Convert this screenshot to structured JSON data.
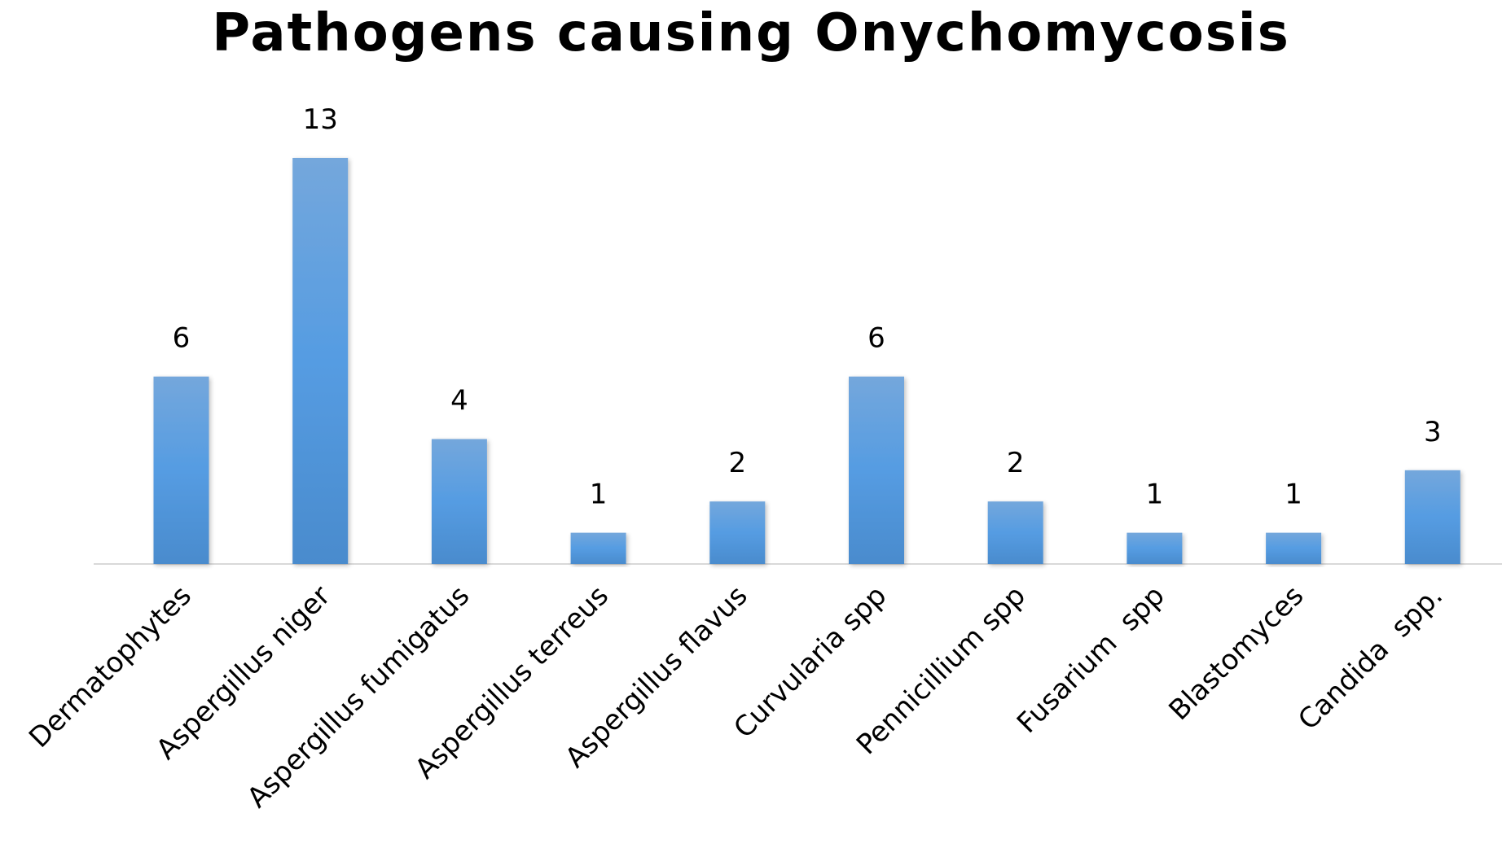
{
  "chart_data": {
    "type": "bar",
    "title": "Pathogens causing Onychomycosis",
    "categories": [
      "Dermatophytes",
      "Aspergillus niger",
      "Aspergillus fumigatus",
      "Aspergillus terreus",
      "Aspergillus flavus",
      "Curvularia spp",
      "Pennicillium spp",
      "Fusarium  spp",
      "Blastomyces",
      "Candida  spp."
    ],
    "values": [
      6,
      13,
      4,
      1,
      2,
      6,
      2,
      1,
      1,
      3
    ],
    "data_labels": [
      "6",
      "13",
      "4",
      "1",
      "2",
      "6",
      "2",
      "1",
      "1",
      "3"
    ],
    "xlabel": "",
    "ylabel": "",
    "ylim": [
      0,
      13
    ],
    "grid": false,
    "legend": "none",
    "colors": {
      "bar_top": "#74a7dc",
      "bar_mid": "#559ce2",
      "bar_bottom": "#4a8bcd",
      "baseline": "#d9d9d9"
    }
  }
}
